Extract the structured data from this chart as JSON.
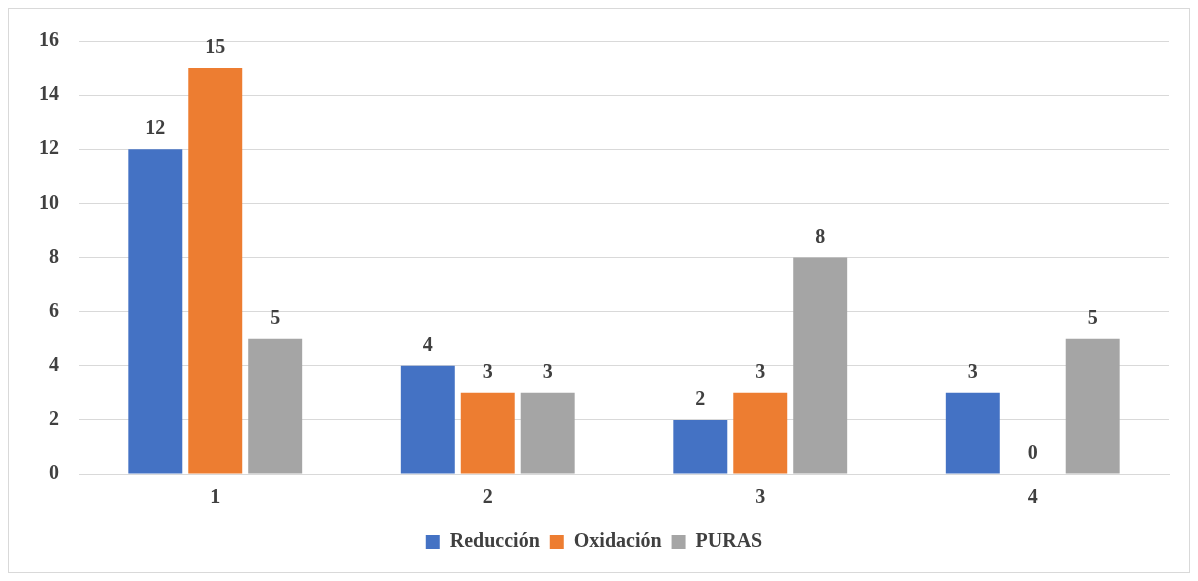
{
  "chart_data": {
    "type": "bar",
    "categories": [
      "1",
      "2",
      "3",
      "4"
    ],
    "series": [
      {
        "name": "Reducción",
        "color": "#4472c4",
        "values": [
          12,
          4,
          2,
          3
        ]
      },
      {
        "name": "Oxidación",
        "color": "#ed7d31",
        "values": [
          15,
          3,
          3,
          0
        ]
      },
      {
        "name": "PURAS",
        "color": "#a5a5a5",
        "values": [
          5,
          3,
          8,
          5
        ]
      }
    ],
    "ylim": [
      0,
      16
    ],
    "yticks": [
      0,
      2,
      4,
      6,
      8,
      10,
      12,
      14,
      16
    ],
    "grid": "y",
    "legend": "bottom",
    "data_labels": true
  }
}
